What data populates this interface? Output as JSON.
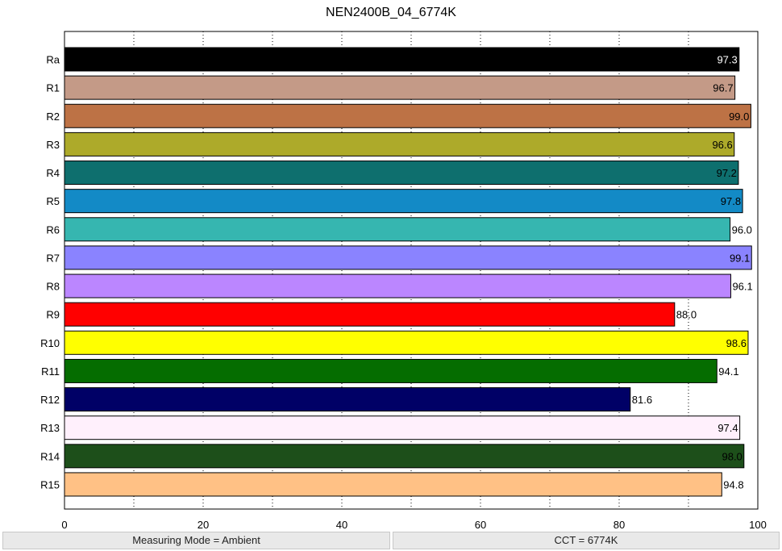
{
  "chart_data": {
    "type": "bar",
    "orientation": "horizontal",
    "title": "NEN2400B_04_6774K",
    "xlabel": "",
    "ylabel": "",
    "xlim": [
      0,
      100
    ],
    "xticks": [
      0,
      20,
      40,
      60,
      80,
      100
    ],
    "minor_grid": [
      10,
      30,
      50,
      70,
      90
    ],
    "grid": "dotted vertical",
    "categories": [
      "Ra",
      "R1",
      "R2",
      "R3",
      "R4",
      "R5",
      "R6",
      "R7",
      "R8",
      "R9",
      "R10",
      "R11",
      "R12",
      "R13",
      "R14",
      "R15"
    ],
    "values": [
      97.3,
      96.7,
      99.0,
      96.6,
      97.2,
      97.8,
      96.0,
      99.1,
      96.1,
      88.0,
      98.6,
      94.1,
      81.6,
      97.4,
      98.0,
      94.8
    ],
    "value_labels": [
      "97.3",
      "96.7",
      "99.0",
      "96.6",
      "97.2",
      "97.8",
      "96.0",
      "99.1",
      "96.1",
      "88.0",
      "98.6",
      "94.1",
      "81.6",
      "97.4",
      "98.0",
      "94.8"
    ],
    "colors": [
      "#000000",
      "#c49a87",
      "#bd7245",
      "#adaa2a",
      "#0e6f6e",
      "#138ac6",
      "#36b6b0",
      "#8a83ff",
      "#bb86ff",
      "#ff0000",
      "#ffff00",
      "#056d00",
      "#000066",
      "#fff0fc",
      "#1d4f1a",
      "#ffc185"
    ],
    "label_colors": [
      "#ffffff",
      "#000000",
      "#000000",
      "#000000",
      "#000000",
      "#000000",
      "#000000",
      "#000000",
      "#000000",
      "#000000",
      "#000000",
      "#000000",
      "#000000",
      "#000000",
      "#000000",
      "#000000"
    ]
  },
  "status": {
    "left": "Measuring Mode = Ambient",
    "right": "CCT = 6774K"
  }
}
